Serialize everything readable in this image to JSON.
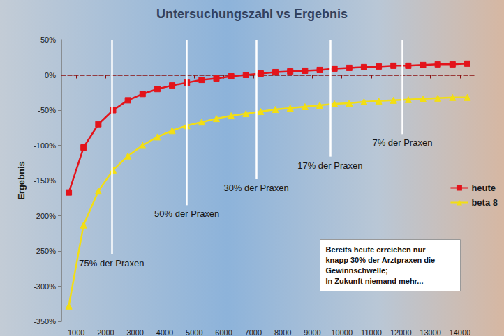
{
  "chart_data": {
    "type": "line",
    "title": "Untersuchungszahl vs Ergebnis",
    "ylabel": "Ergebnis",
    "x": [
      750,
      1250,
      1750,
      2250,
      2750,
      3250,
      3750,
      4250,
      4750,
      5250,
      5750,
      6250,
      6750,
      7250,
      7750,
      8250,
      8750,
      9250,
      9750,
      10250,
      10750,
      11250,
      11750,
      12250,
      12750,
      13250,
      13750,
      14250
    ],
    "series": [
      {
        "name": "heute",
        "color": "#e3141b",
        "marker": "square",
        "values": [
          -167,
          -103,
          -70,
          -50,
          -36,
          -27,
          -20,
          -15,
          -11,
          -7,
          -5,
          -2,
          0,
          2,
          4,
          5,
          6,
          7,
          9,
          10,
          11,
          12,
          13,
          13,
          14,
          15,
          15,
          16
        ]
      },
      {
        "name": "beta 8",
        "color": "#f2de14",
        "marker": "triangle",
        "values": [
          -328,
          -213,
          -165,
          -135,
          -115,
          -100,
          -88,
          -79,
          -72,
          -67,
          -62,
          -58,
          -55,
          -52,
          -49,
          -47,
          -45,
          -43,
          -41,
          -40,
          -38,
          -37,
          -36,
          -35,
          -34,
          -33,
          -32,
          -32
        ]
      }
    ],
    "xlim": [
      500,
      14500
    ],
    "xticks": [
      1000,
      2000,
      3000,
      4000,
      5000,
      6000,
      7000,
      8000,
      9000,
      10000,
      11000,
      12000,
      13000,
      14000
    ],
    "ylim": [
      -350,
      50
    ],
    "yticks": [
      {
        "value": -350,
        "label": "-350%"
      },
      {
        "value": -300,
        "label": "-300%"
      },
      {
        "value": -250,
        "label": "-250%"
      },
      {
        "value": -200,
        "label": "-200%"
      },
      {
        "value": -150,
        "label": "-150%"
      },
      {
        "value": -100,
        "label": "-100%"
      },
      {
        "value": -50,
        "label": "-50%"
      },
      {
        "value": 0,
        "label": "0%"
      },
      {
        "value": 50,
        "label": "50%"
      }
    ],
    "annotations": [
      {
        "text": "75% der Praxen",
        "x": 2200,
        "y": -255
      },
      {
        "text": "50% der Praxen",
        "x": 4750,
        "y": -185
      },
      {
        "text": "30% der Praxen",
        "x": 7100,
        "y": -148
      },
      {
        "text": "17% der Praxen",
        "x": 9600,
        "y": -116
      },
      {
        "text": "7% der Praxen",
        "x": 12050,
        "y": -84
      }
    ],
    "note": [
      "Bereits heute erreichen nur",
      "knapp 30% der Arztpraxen die",
      "Gewinnschwelle;",
      "In Zukunft niemand mehr..."
    ],
    "grid": false,
    "legend": "right"
  }
}
